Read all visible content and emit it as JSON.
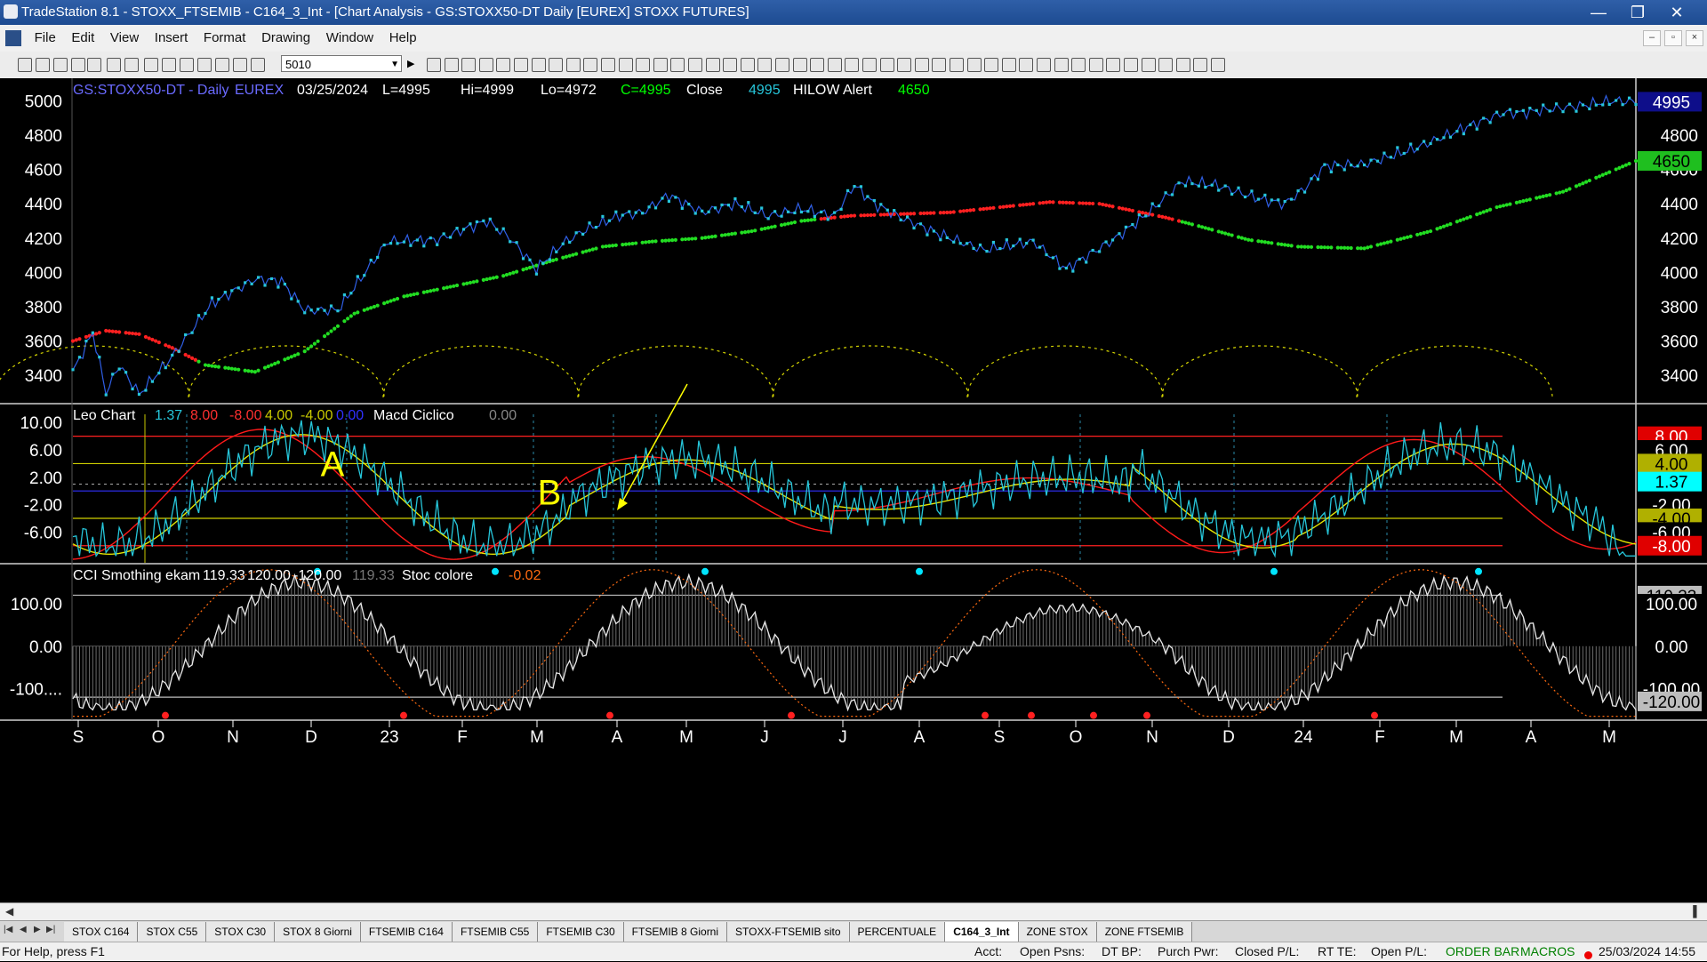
{
  "window": {
    "title": "TradeStation 8.1 - STOXX_FTSEMIB - C164_3_Int - [Chart Analysis - GS:STOXX50-DT  Daily  [EUREX] STOXX FUTURES]",
    "min": "—",
    "max": "❐",
    "close": "✕"
  },
  "menu": [
    "File",
    "Edit",
    "View",
    "Insert",
    "Format",
    "Drawing",
    "Window",
    "Help"
  ],
  "mdi": {
    "min": "–",
    "restore": "▫",
    "close": "×"
  },
  "toolbar": {
    "symbol_value": "5010",
    "symbol_dropdown": "▼",
    "next": "▶"
  },
  "chart_data": [
    {
      "type": "line",
      "title": "GS:STOXX50-DT - Daily",
      "header": {
        "symbol": "GS:STOXX50-DT - Daily",
        "exchange": "EUREX",
        "date": "03/25/2024",
        "last": "L=4995",
        "high": "Hi=4999",
        "low": "Lo=4972",
        "close": "C=4995",
        "close_label": "Close",
        "close_value": "4995",
        "study": "HILOW Alert",
        "study_value": "4650"
      },
      "ylim": [
        3240,
        5080
      ],
      "yticks": [
        "5000",
        "4800",
        "4600",
        "4400",
        "4200",
        "4000",
        "3800",
        "3600",
        "3400"
      ],
      "price_badge": "4995",
      "ma_badge": "4650",
      "series": [
        {
          "name": "Close",
          "x": [
            0,
            6,
            10,
            14,
            20,
            30,
            42,
            55,
            63,
            70,
            80,
            95,
            110,
            118,
            125,
            132,
            140,
            148,
            155,
            165,
            172,
            180,
            190,
            200,
            210,
            220,
            230,
            236,
            242,
            250,
            262,
            275,
            290,
            300,
            315,
            325,
            335,
            345,
            358,
            366,
            372,
            378,
            390,
            405,
            420,
            432,
            438,
            445,
            455,
            465,
            472
          ],
          "values": [
            3420,
            3650,
            3300,
            3460,
            3290,
            3510,
            3820,
            3960,
            3950,
            3780,
            3780,
            4180,
            4190,
            4250,
            4300,
            4200,
            4020,
            4170,
            4250,
            4330,
            4350,
            4450,
            4350,
            4400,
            4330,
            4370,
            4330,
            4510,
            4400,
            4320,
            4220,
            4130,
            4180,
            4020,
            4200,
            4350,
            4530,
            4510,
            4430,
            4400,
            4490,
            4620,
            4630,
            4720,
            4840,
            4930,
            4930,
            4950,
            4970,
            5000,
            4995
          ]
        },
        {
          "name": "HILOW Alert",
          "x": [
            0,
            10,
            20,
            30,
            40,
            55,
            70,
            85,
            100,
            115,
            130,
            145,
            160,
            175,
            190,
            205,
            220,
            235,
            250,
            265,
            280,
            295,
            310,
            320,
            330,
            340,
            355,
            370,
            390,
            410,
            430,
            450,
            472
          ],
          "values": [
            3600,
            3660,
            3640,
            3560,
            3460,
            3420,
            3540,
            3760,
            3860,
            3920,
            3980,
            4070,
            4150,
            4180,
            4200,
            4240,
            4300,
            4330,
            4340,
            4350,
            4380,
            4410,
            4400,
            4360,
            4320,
            4270,
            4190,
            4150,
            4140,
            4240,
            4380,
            4470,
            4650
          ]
        }
      ]
    },
    {
      "type": "line",
      "title": "Leo Chart",
      "header": {
        "name": "Leo Chart",
        "v1": "1.37",
        "v2": "8.00",
        "v3": "-8.00",
        "v4": "4.00",
        "v5": "-4.00",
        "v6": "0.00",
        "macd": "Macd Ciclico",
        "macd_value": "0.00"
      },
      "ylim": [
        -10.5,
        12.5
      ],
      "yticks": [
        "10.00",
        "6.00",
        "2.00",
        "-2.00",
        "-6.00"
      ],
      "levels": [
        8,
        4,
        0,
        -4,
        -8
      ],
      "badges": [
        "8.00",
        "6.00",
        "4.00",
        "1.37",
        "-2.00",
        "-4.00",
        "-6.00",
        "-8.00"
      ],
      "annotations": [
        "A",
        "B"
      ]
    },
    {
      "type": "line",
      "title": "CCI Smothing ekam",
      "header": {
        "name": "CCI Smothing ekam",
        "v1": "119.33",
        "v2": "120.00",
        "v3": "-120.00",
        "v4": "119.33",
        "stoc": "Stoc colore",
        "stoc_value": "-0.02"
      },
      "ylim": [
        -170,
        190
      ],
      "yticks": [
        "100.00",
        "0.00",
        "-100...."
      ],
      "badges": [
        "119.33",
        "100.00",
        "0.00",
        "-100.00",
        "-120.00"
      ]
    }
  ],
  "x_axis": [
    "S",
    "O",
    "N",
    "D",
    "23",
    "F",
    "M",
    "A",
    "M",
    "J",
    "J",
    "A",
    "S",
    "O",
    "N",
    "D",
    "24",
    "F",
    "M",
    "A",
    "M"
  ],
  "colors": {
    "price": "#26c6da",
    "ma_up": "#22dd22",
    "ma_down": "#ff2020",
    "osc_yellow": "#e6e600",
    "osc_red": "#ff1a1a",
    "bg": "#000000"
  },
  "tabs": [
    "STOX C164",
    "STOX C55",
    "STOX  C30",
    "STOX  8 Giorni",
    "FTSEMIB C164",
    "FTSEMIB C55",
    "FTSEMIB C30",
    "FTSEMIB  8 Giorni",
    "STOXX-FTSEMIB sito",
    "PERCENTUALE",
    "C164_3_Int",
    "ZONE STOX",
    "ZONE FTSEMIB"
  ],
  "active_tab": "C164_3_Int",
  "status": {
    "help": "For Help, press F1",
    "acct": "Acct:",
    "open_psns": "Open Psns:",
    "dt_bp": "DT BP:",
    "purch_pwr": "Purch Pwr:",
    "closed_pl": "Closed P/L:",
    "rt_te": "RT TE:",
    "open_pl": "Open P/L:",
    "order_bar": "ORDER BAR",
    "macros": "MACROS",
    "datetime": "25/03/2024 14:55"
  }
}
